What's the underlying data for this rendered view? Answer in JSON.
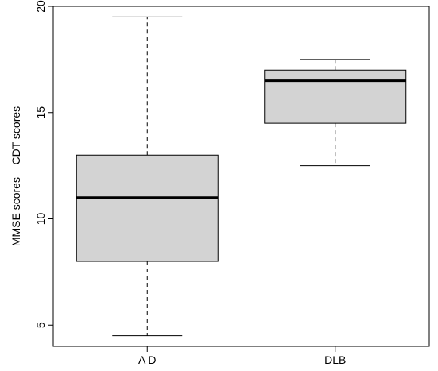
{
  "chart_data": {
    "type": "boxplot",
    "title": "",
    "xlabel": "",
    "ylabel": "MMSE scores – CDT scores",
    "categories": [
      "A D",
      "DLB"
    ],
    "boxes": [
      {
        "category": "A D",
        "whisker_low": 4.5,
        "q1": 8.0,
        "median": 11.0,
        "q3": 13.0,
        "whisker_high": 19.5
      },
      {
        "category": "DLB",
        "whisker_low": 12.5,
        "q1": 14.5,
        "median": 16.5,
        "q3": 17.0,
        "whisker_high": 17.5
      }
    ],
    "yticks": [
      5,
      10,
      15,
      20
    ],
    "ylim": [
      4.0,
      20.0
    ],
    "grid": false,
    "box_fill": "#d3d3d3",
    "line_color": "#000000"
  }
}
